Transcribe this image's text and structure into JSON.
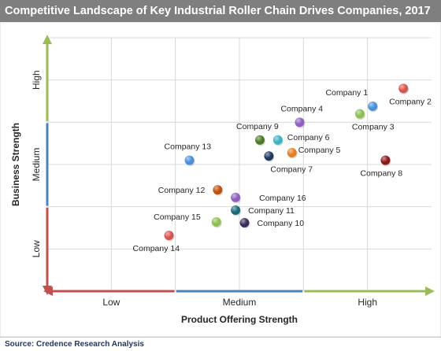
{
  "chart_data": {
    "type": "scatter",
    "title": "Competitive Landscape of Key Industrial Roller Chain Drives Companies, 2017",
    "xlabel": "Product Offering Strength",
    "ylabel": "Business Strength",
    "x_categories": [
      "Low",
      "Medium",
      "High"
    ],
    "y_categories": [
      "Low",
      "Medium",
      "High"
    ],
    "xlim": [
      0,
      3
    ],
    "ylim": [
      0,
      3
    ],
    "grid": true,
    "points": [
      {
        "label": "Company 1",
        "x": 2.54,
        "y": 2.19,
        "color": "#4a90d9"
      },
      {
        "label": "Company 2",
        "x": 2.78,
        "y": 2.4,
        "color": "#d9534f"
      },
      {
        "label": "Company 3",
        "x": 2.44,
        "y": 2.1,
        "color": "#8cc152"
      },
      {
        "label": "Company 4",
        "x": 1.97,
        "y": 2.0,
        "color": "#8e5fc0"
      },
      {
        "label": "Company 5",
        "x": 1.91,
        "y": 1.64,
        "color": "#e67e22"
      },
      {
        "label": "Company 6",
        "x": 1.8,
        "y": 1.79,
        "color": "#3bb3c3"
      },
      {
        "label": "Company 7",
        "x": 1.73,
        "y": 1.6,
        "color": "#1f3a5f"
      },
      {
        "label": "Company 8",
        "x": 2.64,
        "y": 1.55,
        "color": "#8b1a1a"
      },
      {
        "label": "Company 9",
        "x": 1.66,
        "y": 1.79,
        "color": "#4e7a2a"
      },
      {
        "label": "Company 10",
        "x": 1.54,
        "y": 0.81,
        "color": "#3b2c5c"
      },
      {
        "label": "Company 11",
        "x": 1.47,
        "y": 0.96,
        "color": "#1b6a7a"
      },
      {
        "label": "Company 12",
        "x": 1.33,
        "y": 1.2,
        "color": "#c0500f"
      },
      {
        "label": "Company 13",
        "x": 1.11,
        "y": 1.55,
        "color": "#4a90d9"
      },
      {
        "label": "Company 14",
        "x": 0.95,
        "y": 0.66,
        "color": "#d9534f"
      },
      {
        "label": "Company 15",
        "x": 1.32,
        "y": 0.82,
        "color": "#8cc152"
      },
      {
        "label": "Company 16",
        "x": 1.47,
        "y": 1.11,
        "color": "#8e5fc0"
      }
    ],
    "axis_colors": {
      "low": "#c0504d",
      "medium": "#4f81bd",
      "high": "#9bbb59"
    }
  },
  "source": "Source: Credence Research Analysis"
}
